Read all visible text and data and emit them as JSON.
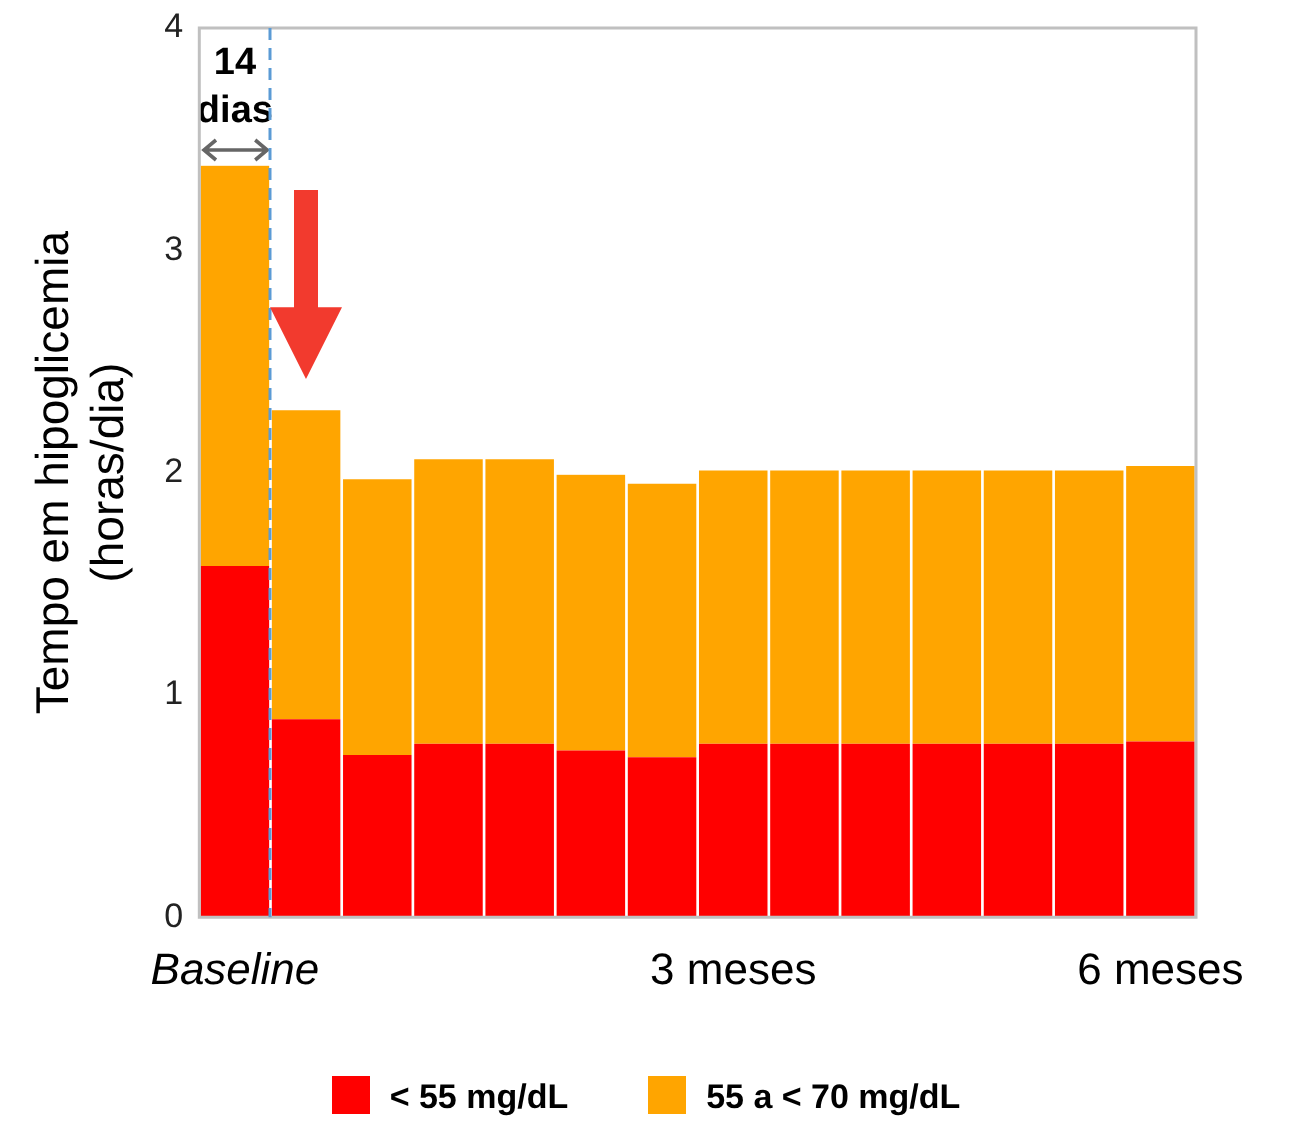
{
  "chart_data": {
    "type": "bar",
    "stacked": true,
    "ylabel": "Tempo em hipoglicemia\n(horas/dia)",
    "categories": [
      "Baseline",
      null,
      null,
      null,
      null,
      null,
      null,
      "3 meses",
      null,
      null,
      null,
      null,
      null,
      "6 meses"
    ],
    "series": [
      {
        "name": "< 55 mg/dL",
        "color": "#ff0000",
        "values": [
          1.58,
          0.89,
          0.73,
          0.78,
          0.78,
          0.75,
          0.72,
          0.78,
          0.78,
          0.78,
          0.78,
          0.78,
          0.78,
          0.79
        ]
      },
      {
        "name": "55 a < 70 mg/dL",
        "color": "#ffa500",
        "values": [
          1.8,
          1.39,
          1.24,
          1.28,
          1.28,
          1.24,
          1.23,
          1.23,
          1.23,
          1.23,
          1.23,
          1.23,
          1.23,
          1.24
        ]
      }
    ],
    "ylim": [
      0,
      4
    ],
    "yticks": [
      0,
      1,
      2,
      3,
      4
    ],
    "annotations": [
      "14 dias"
    ],
    "grid": false,
    "legend": "bottom"
  }
}
